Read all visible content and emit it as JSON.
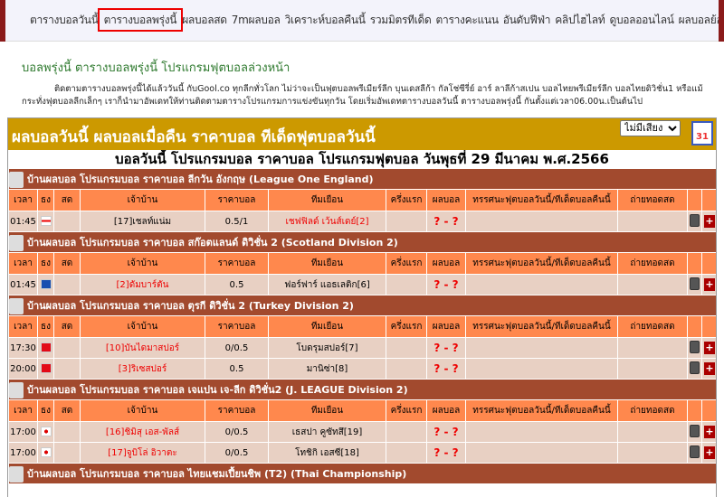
{
  "nav": {
    "items": [
      "ตารางบอลวันนี้",
      "ตารางบอลพรุ่งนี้",
      "ผลบอลสด",
      "7mผลบอล",
      "วิเคราะห์บอลคืนนี้",
      "รวมมิตรทีเด็ด",
      "ตารางคะแนน",
      "อันดับฟีฟ่า",
      "คลิปไฮไลท์",
      "ดูบอลออนไลน์",
      "ผลบอลย้อนหลัง"
    ],
    "active_index": 1
  },
  "heading": "บอลพรุ่งนี้ ตารางบอลพรุ่งนี้ โปรแกรมฟุตบอลล่วงหน้า",
  "intro": "ติดตามตารางบอลพรุ่งนี้ได้แล้ววันนี้ กับGool.co ทุกลีกทั่วโลก ไม่ว่าจะเป็นฟุตบอลพรีเมียร์ลีก บุนเดสลีก้า กัลโช่ซีรี่ย์ อาร์ ลาลีก้าสเปน บอลไทยพรีเมียร์ลีก บอลไทยดิวิชั่น1 หรือแม้กระทั่งฟุตบอลลีกเล็กๆ เราก็นำมาอัพเดทให้ท่านติดตามตารางโปรแกรมการแข่งขันทุกวัน โดยเริ่มอัพเดทตารางบอลวันนี้ ตารางบอลพรุ่งนี้ กันตั้งแต่เวลา06.00น.เป็นต้นไป",
  "banner": {
    "title": "ผลบอลวันนี้ ผลบอลเมื่อคืน ราคาบอล ทีเด็ดฟุตบอลวันนี้",
    "sound_select": "ไม่มีเสียง",
    "calendar_day": "31"
  },
  "date_title": "บอลวันนี้ โปรแกรมบอล ราคาบอล โปรแกรมฟุตบอล วันพุธที่ 29 มีนาคม พ.ศ.2566",
  "columns": [
    "เวลา",
    "ธง",
    "สด",
    "เจ้าบ้าน",
    "ราคาบอล",
    "ทีมเยือน",
    "ครึ่งแรก",
    "ผลบอล",
    "ทรรศนะฟุตบอลวันนี้/ทีเด็ดบอลคืนนี้",
    "ถ่ายทอดสด",
    "",
    ""
  ],
  "leagues": [
    {
      "name": "บ้านผลบอล โปรแกรมบอล ราคาบอล ลีกวัน อังกฤษ (League One England)",
      "flag": "england",
      "matches": [
        {
          "time": "01:45",
          "home": "[17]เชลท์แน่ม",
          "price": "0.5/1",
          "away": "เชฟฟิลด์ เว้นส์เดย์[2]",
          "fav": "away",
          "score": "? - ?"
        }
      ]
    },
    {
      "name": "บ้านผลบอล โปรแกรมบอล ราคาบอล สก๊อตแลนด์ ดิวิชั่น 2 (Scotland Division 2)",
      "flag": "scotland",
      "matches": [
        {
          "time": "01:45",
          "home": "[2]ดัมบาร์ตัน",
          "price": "0.5",
          "away": "ฟอร์ฟาร์ แอธเลติก[6]",
          "fav": "home",
          "score": "? - ?"
        }
      ]
    },
    {
      "name": "บ้านผลบอล โปรแกรมบอล ราคาบอล ตุรกี ดิวิชั่น 2 (Turkey Division 2)",
      "flag": "turkey",
      "matches": [
        {
          "time": "17:30",
          "home": "[10]บันไดมาสปอร์",
          "price": "0/0.5",
          "away": "โบดรุมสปอร์[7]",
          "fav": "home",
          "score": "? - ?"
        },
        {
          "time": "20:00",
          "home": "[3]ริเซสปอร์",
          "price": "0.5",
          "away": "มานิซ่า[8]",
          "fav": "home",
          "score": "? - ?"
        }
      ]
    },
    {
      "name": "บ้านผลบอล โปรแกรมบอล ราคาบอล เจแปน เจ-ลีก ดิวิชั่น2 (J. LEAGUE Division 2)",
      "flag": "japan",
      "matches": [
        {
          "time": "17:00",
          "home": "[16]ชิมิสุ เอส-พัลส์",
          "price": "0/0.5",
          "away": "เธสปา คูซัทสึ[19]",
          "fav": "home",
          "score": "? - ?"
        },
        {
          "time": "17:00",
          "home": "[17]จูบิโล่ อิวาตะ",
          "price": "0/0.5",
          "away": "โทชิกิ เอสซี[18]",
          "fav": "home",
          "score": "? - ?"
        }
      ]
    },
    {
      "name": "บ้านผลบอล โปรแกรมบอล ราคาบอล ไทยแชมเปี้ยนชิพ (T2) (Thai Championship)",
      "flag": "thailand",
      "matches": []
    }
  ],
  "colors": {
    "banner": "#cc9900",
    "league_bar": "#a24a2e",
    "header": "#ff884d",
    "row": "#e8d0c3",
    "favorite": "#ee0000"
  }
}
